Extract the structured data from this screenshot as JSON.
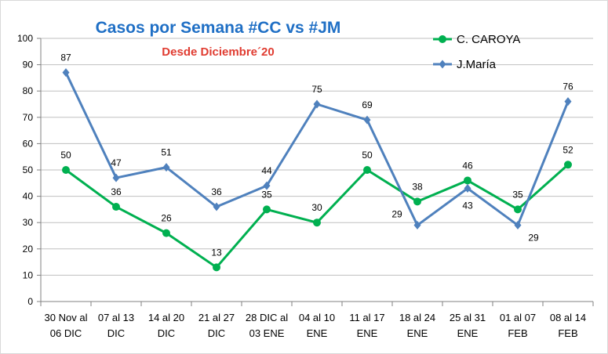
{
  "chart_data": {
    "type": "line",
    "title": "Casos por Semana #CC vs #JM",
    "subtitle": "Desde Diciembre´20",
    "xlabel": "",
    "ylabel": "",
    "ylim": [
      0,
      100
    ],
    "y_ticks": [
      "0",
      "10",
      "20",
      "30",
      "40",
      "50",
      "60",
      "70",
      "80",
      "90",
      "100"
    ],
    "grid": true,
    "legend_position": "top-right",
    "categories": [
      [
        "30 Nov al",
        "06 DIC"
      ],
      [
        "07 al 13",
        "DIC"
      ],
      [
        "14 al 20",
        "DIC"
      ],
      [
        "21 al 27",
        "DIC"
      ],
      [
        "28 DIC al",
        "03 ENE"
      ],
      [
        "04 al 10",
        "ENE"
      ],
      [
        "11 al 17",
        "ENE"
      ],
      [
        "18 al 24",
        "ENE"
      ],
      [
        "25 al 31",
        "ENE"
      ],
      [
        "01 al 07",
        "FEB"
      ],
      [
        "08 al 14",
        "FEB"
      ]
    ],
    "series": [
      {
        "name": "C. CAROYA",
        "color": "#00B050",
        "marker": "circle",
        "values": [
          50,
          36,
          26,
          13,
          35,
          30,
          50,
          38,
          46,
          35,
          52
        ]
      },
      {
        "name": "J.María",
        "color": "#4F81BD",
        "marker": "diamond",
        "values": [
          87,
          47,
          51,
          36,
          44,
          75,
          69,
          29,
          43,
          29,
          76
        ]
      }
    ],
    "colors": {
      "title": "#1F6FC5",
      "subtitle": "#E03C31",
      "grid": "#BFBFBF",
      "axis": "#808080",
      "text": "#000000"
    }
  }
}
